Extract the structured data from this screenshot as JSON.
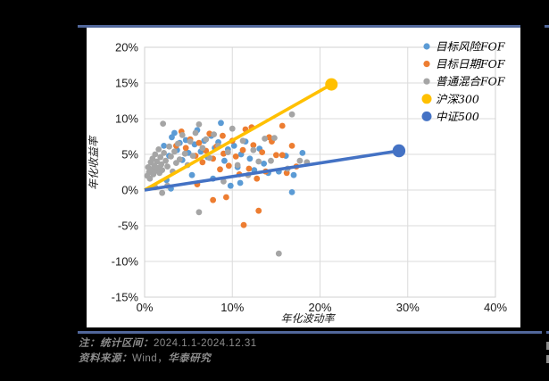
{
  "page": {
    "background": "#000000",
    "divider_color": "#51679B"
  },
  "footer": {
    "note_label": "注：统计区间：",
    "note_value": "2024.1.1-2024.12.31",
    "source_label": "资料来源：",
    "source_value_sans": "Wind，",
    "source_value_kai": "华泰研究"
  },
  "chart_data": {
    "type": "scatter",
    "title": "",
    "xlabel": "年化波动率",
    "ylabel": "年化收益率",
    "xlim": [
      0,
      40
    ],
    "ylim": [
      -15,
      20
    ],
    "x_tick_values": [
      0,
      10,
      20,
      30,
      40
    ],
    "y_tick_values": [
      20,
      15,
      10,
      5,
      0,
      -5,
      -10,
      -15
    ],
    "tick_suffix": "%",
    "grid": true,
    "grid_color": "#DBDBDB",
    "frame_color": "#D0D0D0",
    "text_color": "#1a1a1a",
    "legend_position": "top-right",
    "series": [
      {
        "name": "目标风险FOF",
        "type": "scatter",
        "color": "#5B9BD5",
        "marker_size": 3.4,
        "points": [
          [
            1.8,
            2.9
          ],
          [
            2.2,
            6.2
          ],
          [
            2.5,
            1.4
          ],
          [
            2.8,
            4.8
          ],
          [
            3.0,
            0.2
          ],
          [
            3.1,
            7.4
          ],
          [
            3.4,
            8.0
          ],
          [
            3.7,
            5.6
          ],
          [
            4.0,
            6.6
          ],
          [
            4.3,
            4.2
          ],
          [
            4.7,
            7.0
          ],
          [
            5.0,
            5.2
          ],
          [
            5.4,
            2.1
          ],
          [
            5.7,
            6.4
          ],
          [
            6.0,
            8.4
          ],
          [
            6.4,
            5.4
          ],
          [
            6.8,
            6.9
          ],
          [
            7.2,
            4.6
          ],
          [
            7.6,
            7.6
          ],
          [
            7.8,
            1.6
          ],
          [
            8.0,
            5.9
          ],
          [
            8.4,
            6.7
          ],
          [
            8.7,
            9.4
          ],
          [
            9.1,
            4.1
          ],
          [
            9.5,
            5.7
          ],
          [
            9.8,
            0.6
          ],
          [
            10.2,
            6.2
          ],
          [
            10.6,
            3.2
          ],
          [
            10.9,
            1.0
          ],
          [
            11.0,
            5.0
          ],
          [
            11.5,
            6.8
          ],
          [
            12.0,
            4.4
          ],
          [
            12.5,
            2.8
          ],
          [
            13.1,
            5.8
          ],
          [
            13.6,
            3.7
          ],
          [
            14.1,
            2.4
          ],
          [
            15.3,
            2.6
          ],
          [
            16.1,
            4.8
          ],
          [
            16.8,
            -0.3
          ],
          [
            17.0,
            2.1
          ],
          [
            18.0,
            5.2
          ]
        ]
      },
      {
        "name": "目标日期FOF",
        "type": "scatter",
        "color": "#ED7D31",
        "marker_size": 3.4,
        "points": [
          [
            3.6,
            6.2
          ],
          [
            4.2,
            8.2
          ],
          [
            4.7,
            5.9
          ],
          [
            5.2,
            7.1
          ],
          [
            5.8,
            4.8
          ],
          [
            6.0,
            0.8
          ],
          [
            6.2,
            6.6
          ],
          [
            6.6,
            3.9
          ],
          [
            7.0,
            5.5
          ],
          [
            7.4,
            7.9
          ],
          [
            7.8,
            -1.4
          ],
          [
            7.8,
            4.4
          ],
          [
            8.2,
            6.1
          ],
          [
            8.6,
            2.9
          ],
          [
            8.9,
            7.6
          ],
          [
            9.0,
            5.1
          ],
          [
            9.3,
            -1.0
          ],
          [
            9.6,
            3.4
          ],
          [
            10.0,
            6.9
          ],
          [
            10.4,
            4.7
          ],
          [
            10.8,
            2.2
          ],
          [
            11.2,
            5.6
          ],
          [
            11.3,
            -4.9
          ],
          [
            11.5,
            8.5
          ],
          [
            11.9,
            3.0
          ],
          [
            12.2,
            8.8
          ],
          [
            12.4,
            6.3
          ],
          [
            12.8,
            1.6
          ],
          [
            13.0,
            -2.9
          ],
          [
            13.4,
            5.3
          ],
          [
            13.8,
            2.6
          ],
          [
            14.2,
            7.4
          ],
          [
            14.5,
            6.8
          ],
          [
            15.0,
            4.9
          ],
          [
            15.7,
            9.0
          ],
          [
            15.7,
            4.9
          ],
          [
            16.2,
            2.4
          ],
          [
            16.8,
            6.2
          ],
          [
            17.3,
            3.3
          ]
        ]
      },
      {
        "name": "普通混合FOF",
        "type": "scatter",
        "color": "#A5A5A5",
        "marker_size": 3.4,
        "points": [
          [
            0.3,
            2.0
          ],
          [
            0.4,
            3.2
          ],
          [
            0.5,
            2.5
          ],
          [
            0.6,
            1.6
          ],
          [
            0.7,
            3.9
          ],
          [
            0.8,
            2.9
          ],
          [
            0.9,
            4.4
          ],
          [
            1.0,
            2.2
          ],
          [
            1.1,
            3.4
          ],
          [
            1.2,
            0.4
          ],
          [
            1.2,
            5.0
          ],
          [
            1.3,
            2.7
          ],
          [
            1.4,
            4.0
          ],
          [
            1.5,
            3.1
          ],
          [
            1.6,
            5.7
          ],
          [
            1.7,
            2.4
          ],
          [
            1.8,
            4.6
          ],
          [
            1.9,
            3.6
          ],
          [
            2.0,
            -0.4
          ],
          [
            2.0,
            2.8
          ],
          [
            2.1,
            9.3
          ],
          [
            2.2,
            5.2
          ],
          [
            2.4,
            4.1
          ],
          [
            2.6,
            0.6
          ],
          [
            2.6,
            3.3
          ],
          [
            2.8,
            6.1
          ],
          [
            3.0,
            4.7
          ],
          [
            3.2,
            2.6
          ],
          [
            3.4,
            5.4
          ],
          [
            3.6,
            3.8
          ],
          [
            3.8,
            6.5
          ],
          [
            4.0,
            4.3
          ],
          [
            4.3,
            7.7
          ],
          [
            4.6,
            5.1
          ],
          [
            4.9,
            3.5
          ],
          [
            5.2,
            6.8
          ],
          [
            5.5,
            4.8
          ],
          [
            5.8,
            8.0
          ],
          [
            6.2,
            -3.1
          ],
          [
            6.2,
            9.2
          ],
          [
            6.6,
            5.9
          ],
          [
            7.0,
            7.1
          ],
          [
            7.4,
            4.5
          ],
          [
            7.9,
            7.8
          ],
          [
            8.4,
            6.2
          ],
          [
            9.0,
            1.2
          ],
          [
            9.5,
            5.3
          ],
          [
            10.0,
            8.6
          ],
          [
            10.6,
            3.5
          ],
          [
            11.2,
            6.9
          ],
          [
            11.8,
            2.1
          ],
          [
            12.4,
            5.6
          ],
          [
            13.0,
            4.0
          ],
          [
            13.7,
            7.2
          ],
          [
            14.4,
            4.1
          ],
          [
            14.8,
            7.3
          ],
          [
            15.3,
            -8.9
          ],
          [
            16.3,
            3.0
          ],
          [
            16.8,
            10.6
          ],
          [
            17.7,
            4.1
          ],
          [
            18.5,
            3.9
          ]
        ]
      },
      {
        "name": "沪深300",
        "type": "line",
        "color": "#FFC000",
        "line_width": 3.6,
        "endpoint_marker": 7,
        "points": [
          [
            0,
            0
          ],
          [
            21.3,
            14.8
          ]
        ]
      },
      {
        "name": "中证500",
        "type": "line",
        "color": "#4472C4",
        "line_width": 3.6,
        "endpoint_marker": 7.2,
        "points": [
          [
            0,
            0
          ],
          [
            29.0,
            5.5
          ]
        ]
      }
    ]
  }
}
